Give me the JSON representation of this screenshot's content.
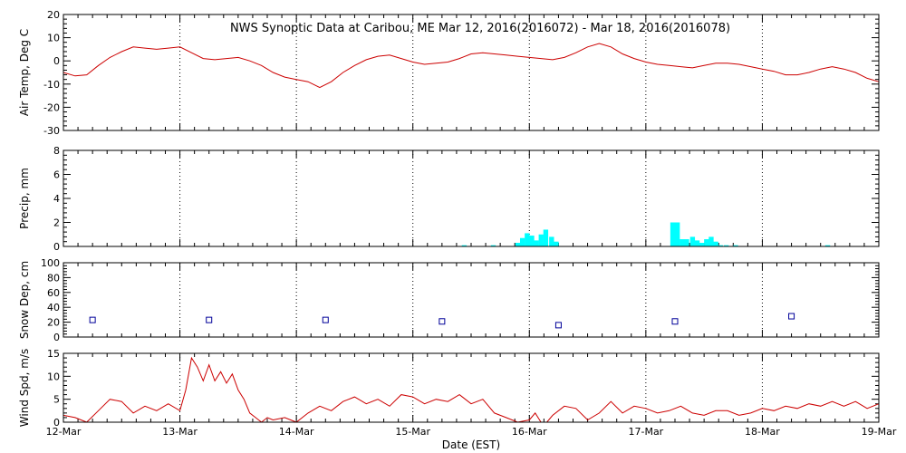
{
  "chart_data": {
    "type": "line",
    "title": "NWS Synoptic Data at Caribou, ME   Mar 12, 2016(2016072) - Mar 18, 2016(2016078)",
    "xlabel": "Date (EST)",
    "x_ticks": [
      "12-Mar",
      "13-Mar",
      "14-Mar",
      "15-Mar",
      "16-Mar",
      "17-Mar",
      "18-Mar",
      "19-Mar"
    ],
    "xlim": [
      0,
      7
    ],
    "x_unit": "days since 12-Mar 00:00 EST",
    "grid": "vertical dotted at each day",
    "panels": [
      {
        "type": "line",
        "ylabel": "Air Temp, Deg C",
        "ylim": [
          -30,
          20
        ],
        "yticks": [
          20,
          10,
          0,
          -10,
          -20,
          -30
        ],
        "series": [
          {
            "color": "#cc0000",
            "x": [
              0,
              0.1,
              0.2,
              0.3,
              0.4,
              0.5,
              0.6,
              0.7,
              0.8,
              0.9,
              1.0,
              1.1,
              1.2,
              1.3,
              1.4,
              1.5,
              1.6,
              1.7,
              1.8,
              1.9,
              2.0,
              2.1,
              2.2,
              2.3,
              2.4,
              2.5,
              2.6,
              2.7,
              2.8,
              2.9,
              3.0,
              3.1,
              3.2,
              3.3,
              3.4,
              3.5,
              3.6,
              3.7,
              3.8,
              3.9,
              4.0,
              4.1,
              4.2,
              4.3,
              4.4,
              4.5,
              4.6,
              4.7,
              4.8,
              4.9,
              5.0,
              5.1,
              5.2,
              5.3,
              5.4,
              5.5,
              5.6,
              5.7,
              5.8,
              5.9,
              6.0,
              6.1,
              6.2,
              6.3,
              6.4,
              6.5,
              6.6,
              6.7,
              6.8,
              6.9,
              7.0
            ],
            "y": [
              -5,
              -6.5,
              -6,
              -2,
              1.5,
              4,
              6,
              5.5,
              5,
              5.5,
              6,
              3.5,
              1,
              0.5,
              1,
              1.5,
              0,
              -2,
              -5,
              -7,
              -8,
              -9,
              -11.5,
              -9,
              -5,
              -2,
              0.5,
              2,
              2.5,
              1,
              -0.5,
              -1.5,
              -1,
              -0.5,
              1,
              3,
              3.5,
              3,
              2.5,
              2,
              1.5,
              1,
              0.5,
              1.5,
              3.5,
              6,
              7.5,
              6,
              3,
              1,
              -0.5,
              -1.5,
              -2,
              -2.5,
              -3,
              -2,
              -1,
              -1,
              -1.5,
              -2.5,
              -3.5,
              -4.5,
              -6,
              -6,
              -5,
              -3.5,
              -2.5,
              -3.5,
              -5,
              -7.5,
              -9
            ]
          }
        ]
      },
      {
        "type": "bar",
        "ylabel": "Precip, mm",
        "ylim": [
          0,
          8
        ],
        "yticks": [
          8,
          6,
          4,
          2,
          0
        ],
        "bar_width_days": 0.0417,
        "series": [
          {
            "color": "#00ffff",
            "x": [
              3.42,
              3.67,
              3.88,
              3.92,
              3.96,
              4.0,
              4.04,
              4.08,
              4.12,
              4.17,
              4.21,
              5.21,
              5.25,
              5.29,
              5.33,
              5.38,
              5.42,
              5.46,
              5.5,
              5.54,
              5.58,
              5.62,
              5.67,
              5.75,
              6.54
            ],
            "y": [
              0.1,
              0.1,
              0.3,
              0.7,
              1.1,
              0.9,
              0.5,
              1.0,
              1.4,
              0.8,
              0.4,
              2.0,
              2.0,
              0.6,
              0.6,
              0.8,
              0.5,
              0.3,
              0.6,
              0.8,
              0.4,
              0.1,
              0.1,
              0.1,
              0.1
            ]
          }
        ]
      },
      {
        "type": "scatter",
        "ylabel": "Snow Dep, cm",
        "ylim": [
          0,
          100
        ],
        "yticks": [
          100,
          80,
          60,
          40,
          20,
          0
        ],
        "series": [
          {
            "color": "#000099",
            "marker": "square",
            "x": [
              0.25,
              1.25,
              2.25,
              3.25,
              4.25,
              5.25,
              6.25
            ],
            "y": [
              23,
              23,
              23,
              21,
              16,
              21,
              28
            ]
          }
        ]
      },
      {
        "type": "line",
        "ylabel": "Wind Spd, m/s",
        "ylim": [
          0,
          15
        ],
        "yticks": [
          15,
          10,
          5,
          0
        ],
        "series": [
          {
            "color": "#cc0000",
            "x": [
              0,
              0.1,
              0.2,
              0.3,
              0.4,
              0.5,
              0.6,
              0.7,
              0.8,
              0.9,
              1.0,
              1.05,
              1.1,
              1.15,
              1.2,
              1.25,
              1.3,
              1.35,
              1.4,
              1.45,
              1.5,
              1.55,
              1.6,
              1.65,
              1.7,
              1.75,
              1.8,
              1.9,
              2.0,
              2.1,
              2.2,
              2.3,
              2.4,
              2.5,
              2.6,
              2.7,
              2.8,
              2.9,
              3.0,
              3.1,
              3.2,
              3.3,
              3.4,
              3.5,
              3.6,
              3.7,
              3.8,
              3.9,
              4.0,
              4.05,
              4.1,
              4.15,
              4.2,
              4.3,
              4.4,
              4.5,
              4.6,
              4.7,
              4.8,
              4.9,
              5.0,
              5.1,
              5.2,
              5.3,
              5.4,
              5.5,
              5.6,
              5.7,
              5.8,
              5.9,
              6.0,
              6.1,
              6.2,
              6.3,
              6.4,
              6.5,
              6.6,
              6.7,
              6.8,
              6.9,
              7.0
            ],
            "y": [
              1.5,
              1,
              0,
              2.5,
              5,
              4.5,
              2,
              3.5,
              2.5,
              4,
              2.5,
              7,
              14,
              12,
              9,
              12.5,
              9,
              11,
              8.5,
              10.5,
              7,
              5,
              2,
              1,
              0,
              1,
              0.5,
              1,
              0,
              2,
              3.5,
              2.5,
              4.5,
              5.5,
              4,
              5,
              3.5,
              6,
              5.5,
              4,
              5,
              4.5,
              6,
              4,
              5,
              2,
              1,
              0,
              0.5,
              2,
              0,
              0,
              1.5,
              3.5,
              3,
              0.5,
              2,
              4.5,
              2,
              3.5,
              3,
              2,
              2.5,
              3.5,
              2,
              1.5,
              2.5,
              2.5,
              1.5,
              2,
              3,
              2.5,
              3.5,
              3,
              4,
              3.5,
              4.5,
              3.5,
              4.5,
              3,
              4
            ]
          }
        ]
      }
    ]
  }
}
